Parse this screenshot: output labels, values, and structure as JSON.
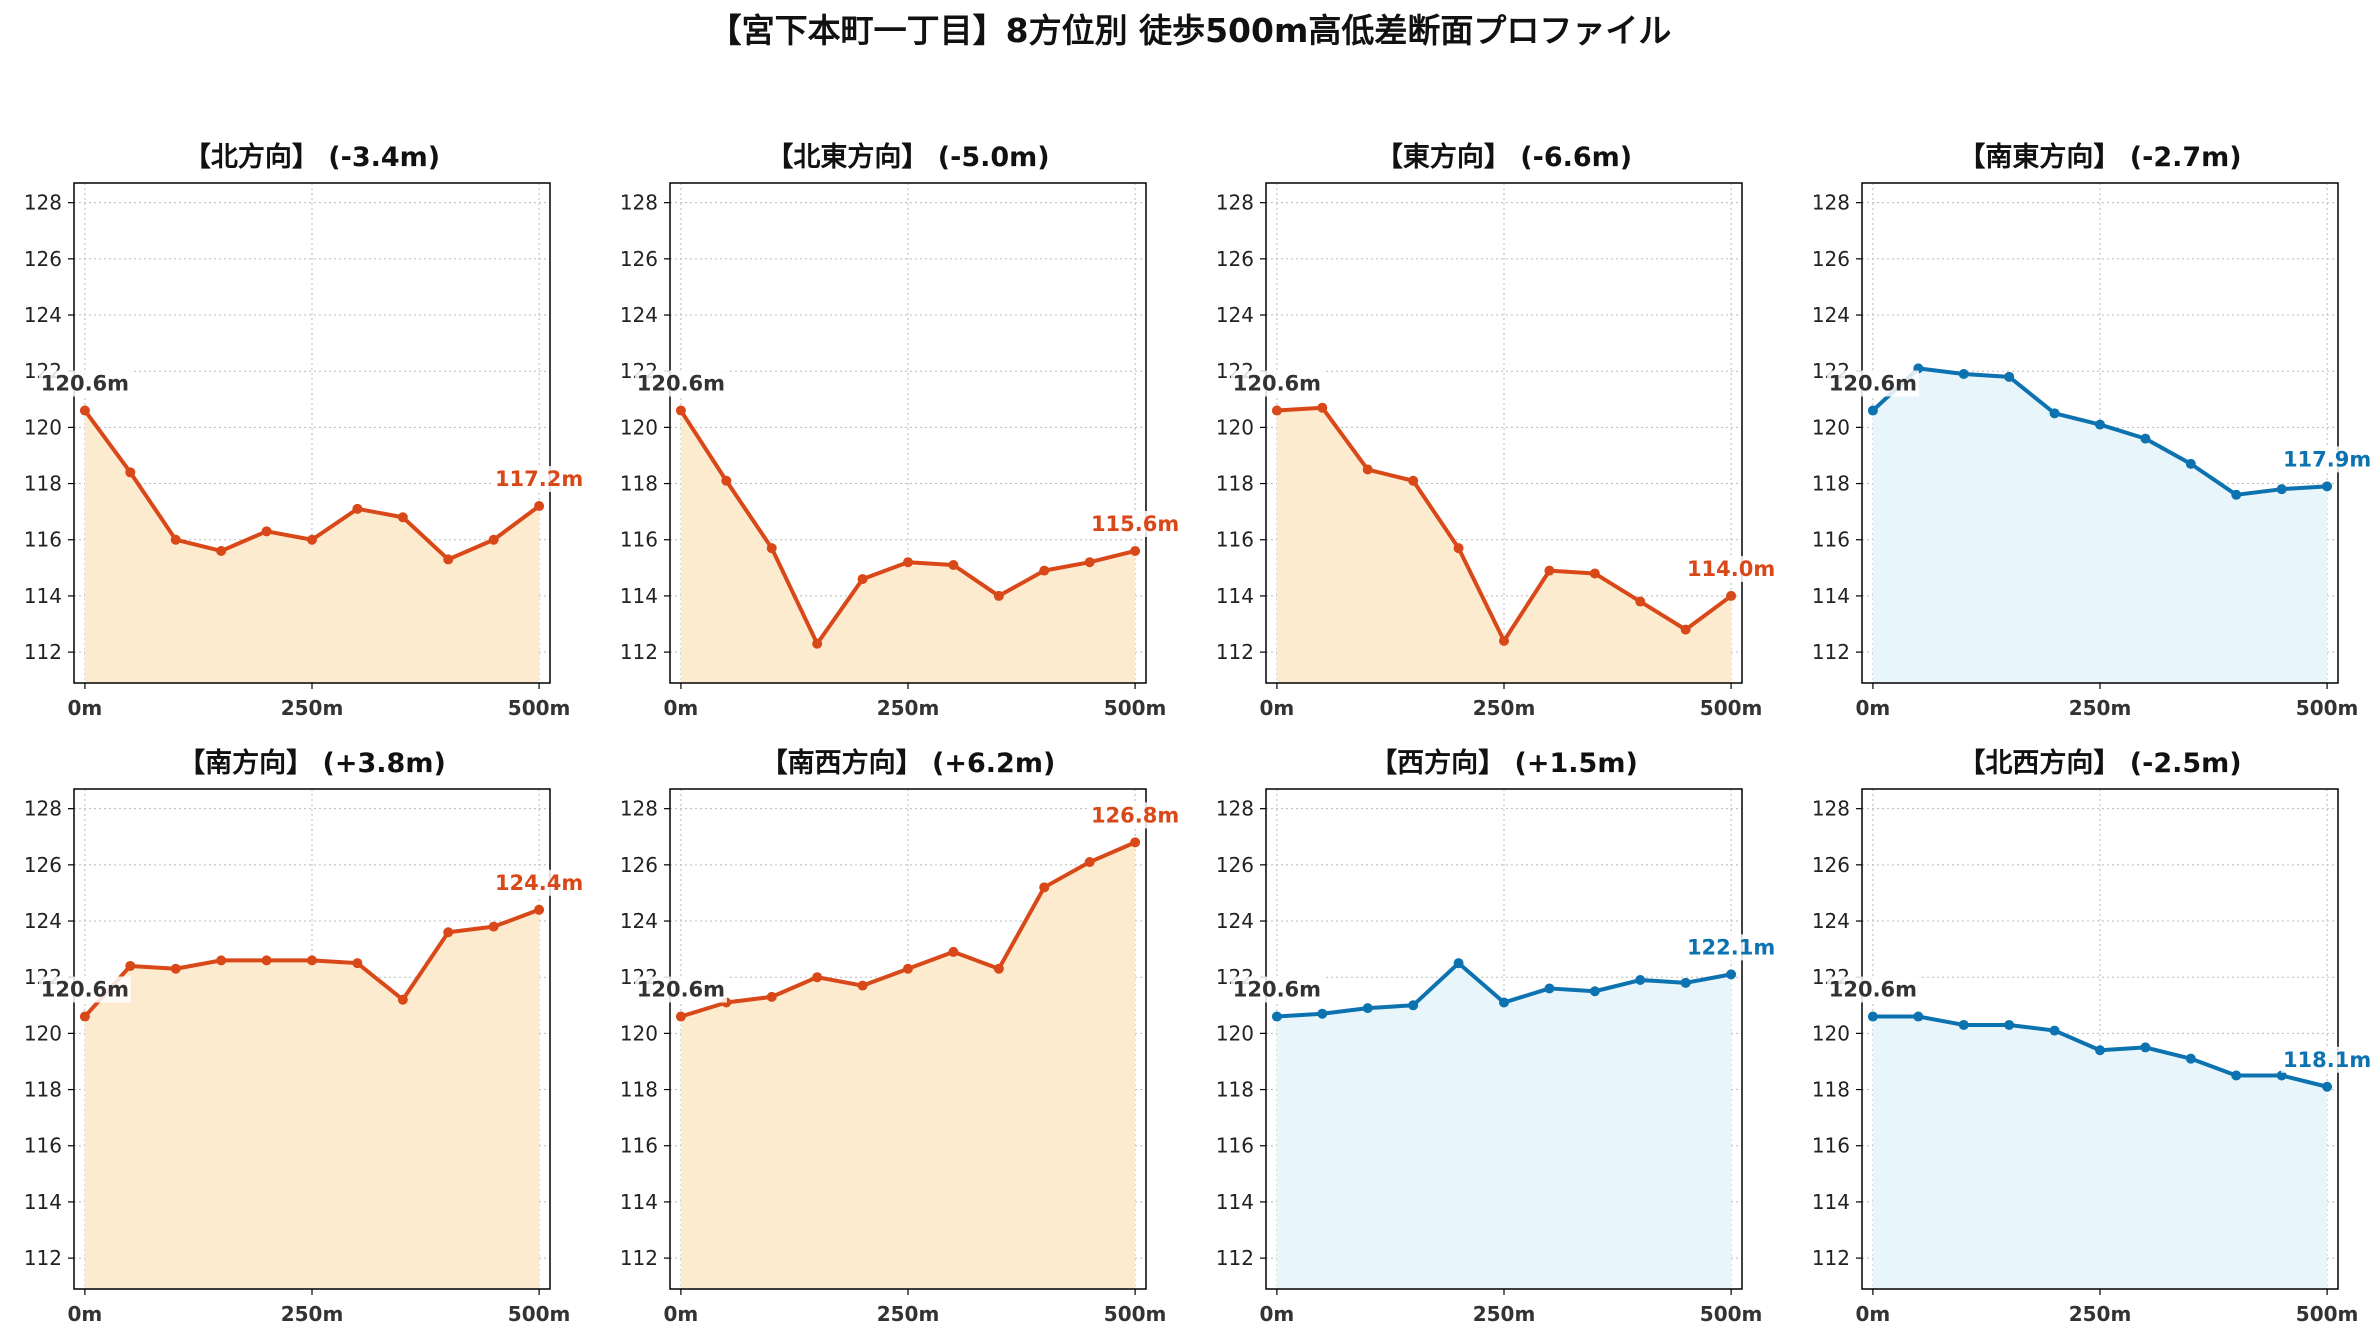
{
  "figure": {
    "title": "【宮下本町一丁目】8方位別 徒歩500m高低差断面プロファイル"
  },
  "colors": {
    "down": "#d94818",
    "down_fill": "#fdebcf",
    "up": "#0c72b0",
    "up_fill": "#e8f5fb",
    "start_label": "#333333",
    "grid": "#bbbbbb"
  },
  "chart_data": [
    {
      "type": "line",
      "title": "【北方向】 (-3.4m)",
      "color_key": "down",
      "x": [
        0,
        50,
        100,
        150,
        200,
        250,
        300,
        350,
        400,
        450,
        500
      ],
      "y": [
        120.6,
        118.4,
        116.0,
        115.6,
        116.3,
        116.0,
        117.1,
        116.8,
        115.3,
        116.0,
        117.2
      ],
      "start_label": "120.6m",
      "end_label": "117.2m",
      "xticks": [
        "0m",
        "250m",
        "500m"
      ],
      "yticks": [
        "112",
        "114",
        "116",
        "118",
        "120",
        "122",
        "124",
        "126",
        "128"
      ],
      "xlim": [
        -12,
        512
      ],
      "ylim": [
        110.9,
        128.7
      ],
      "grid": true
    },
    {
      "type": "line",
      "title": "【北東方向】 (-5.0m)",
      "color_key": "down",
      "x": [
        0,
        50,
        100,
        150,
        200,
        250,
        300,
        350,
        400,
        450,
        500
      ],
      "y": [
        120.6,
        118.1,
        115.7,
        112.3,
        114.6,
        115.2,
        115.1,
        114.0,
        114.9,
        115.2,
        115.6
      ],
      "start_label": "120.6m",
      "end_label": "115.6m",
      "xticks": [
        "0m",
        "250m",
        "500m"
      ],
      "yticks": [
        "112",
        "114",
        "116",
        "118",
        "120",
        "122",
        "124",
        "126",
        "128"
      ],
      "xlim": [
        -12,
        512
      ],
      "ylim": [
        110.9,
        128.7
      ],
      "grid": true
    },
    {
      "type": "line",
      "title": "【東方向】 (-6.6m)",
      "color_key": "down",
      "x": [
        0,
        50,
        100,
        150,
        200,
        250,
        300,
        350,
        400,
        450,
        500
      ],
      "y": [
        120.6,
        120.7,
        118.5,
        118.1,
        115.7,
        112.4,
        114.9,
        114.8,
        113.8,
        112.8,
        114.0
      ],
      "start_label": "120.6m",
      "end_label": "114.0m",
      "xticks": [
        "0m",
        "250m",
        "500m"
      ],
      "yticks": [
        "112",
        "114",
        "116",
        "118",
        "120",
        "122",
        "124",
        "126",
        "128"
      ],
      "xlim": [
        -12,
        512
      ],
      "ylim": [
        110.9,
        128.7
      ],
      "grid": true
    },
    {
      "type": "line",
      "title": "【南東方向】 (-2.7m)",
      "color_key": "up",
      "x": [
        0,
        50,
        100,
        150,
        200,
        250,
        300,
        350,
        400,
        450,
        500
      ],
      "y": [
        120.6,
        122.1,
        121.9,
        121.8,
        120.5,
        120.1,
        119.6,
        118.7,
        117.6,
        117.8,
        117.9
      ],
      "start_label": "120.6m",
      "end_label": "117.9m",
      "xticks": [
        "0m",
        "250m",
        "500m"
      ],
      "yticks": [
        "112",
        "114",
        "116",
        "118",
        "120",
        "122",
        "124",
        "126",
        "128"
      ],
      "xlim": [
        -12,
        512
      ],
      "ylim": [
        110.9,
        128.7
      ],
      "grid": true
    },
    {
      "type": "line",
      "title": "【南方向】 (+3.8m)",
      "color_key": "down",
      "x": [
        0,
        50,
        100,
        150,
        200,
        250,
        300,
        350,
        400,
        450,
        500
      ],
      "y": [
        120.6,
        122.4,
        122.3,
        122.6,
        122.6,
        122.6,
        122.5,
        121.2,
        123.6,
        123.8,
        124.4
      ],
      "start_label": "120.6m",
      "end_label": "124.4m",
      "xticks": [
        "0m",
        "250m",
        "500m"
      ],
      "yticks": [
        "112",
        "114",
        "116",
        "118",
        "120",
        "122",
        "124",
        "126",
        "128"
      ],
      "xlim": [
        -12,
        512
      ],
      "ylim": [
        110.9,
        128.7
      ],
      "grid": true
    },
    {
      "type": "line",
      "title": "【南西方向】 (+6.2m)",
      "color_key": "down",
      "x": [
        0,
        50,
        100,
        150,
        200,
        250,
        300,
        350,
        400,
        450,
        500
      ],
      "y": [
        120.6,
        121.1,
        121.3,
        122.0,
        121.7,
        122.3,
        122.9,
        122.3,
        125.2,
        126.1,
        126.8
      ],
      "start_label": "120.6m",
      "end_label": "126.8m",
      "xticks": [
        "0m",
        "250m",
        "500m"
      ],
      "yticks": [
        "112",
        "114",
        "116",
        "118",
        "120",
        "122",
        "124",
        "126",
        "128"
      ],
      "xlim": [
        -12,
        512
      ],
      "ylim": [
        110.9,
        128.7
      ],
      "grid": true
    },
    {
      "type": "line",
      "title": "【西方向】 (+1.5m)",
      "color_key": "up",
      "x": [
        0,
        50,
        100,
        150,
        200,
        250,
        300,
        350,
        400,
        450,
        500
      ],
      "y": [
        120.6,
        120.7,
        120.9,
        121.0,
        122.5,
        121.1,
        121.6,
        121.5,
        121.9,
        121.8,
        122.1
      ],
      "start_label": "120.6m",
      "end_label": "122.1m",
      "xticks": [
        "0m",
        "250m",
        "500m"
      ],
      "yticks": [
        "112",
        "114",
        "116",
        "118",
        "120",
        "122",
        "124",
        "126",
        "128"
      ],
      "xlim": [
        -12,
        512
      ],
      "ylim": [
        110.9,
        128.7
      ],
      "grid": true
    },
    {
      "type": "line",
      "title": "【北西方向】 (-2.5m)",
      "color_key": "up",
      "x": [
        0,
        50,
        100,
        150,
        200,
        250,
        300,
        350,
        400,
        450,
        500
      ],
      "y": [
        120.6,
        120.6,
        120.3,
        120.3,
        120.1,
        119.4,
        119.5,
        119.1,
        118.5,
        118.5,
        118.1
      ],
      "start_label": "120.6m",
      "end_label": "118.1m",
      "xticks": [
        "0m",
        "250m",
        "500m"
      ],
      "yticks": [
        "112",
        "114",
        "116",
        "118",
        "120",
        "122",
        "124",
        "126",
        "128"
      ],
      "xlim": [
        -12,
        512
      ],
      "ylim": [
        110.9,
        128.7
      ],
      "grid": true
    }
  ]
}
